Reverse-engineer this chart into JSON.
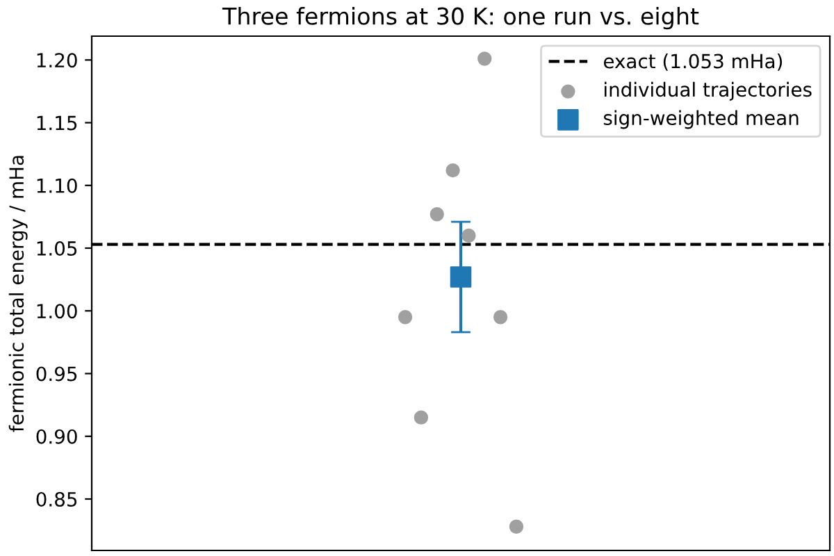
{
  "chart_data": {
    "type": "scatter",
    "title": "Three fermions at 30 K: one run vs. eight",
    "ylabel": "fermionic total energy / mHa",
    "categories": [
      null,
      null,
      null,
      null,
      null,
      null,
      null,
      null,
      null,
      null,
      null,
      null,
      null,
      null,
      null,
      null,
      null,
      null,
      null,
      null,
      null,
      null,
      null,
      null,
      null,
      null,
      null,
      null,
      null,
      null,
      null,
      null,
      null,
      null,
      null,
      null,
      null,
      null,
      null,
      null,
      null,
      null,
      null,
      null,
      null,
      null,
      null,
      null,
      null,
      null,
      null,
      null,
      null,
      null,
      null,
      null,
      null,
      null,
      null,
      null,
      null,
      null,
      null,
      null,
      null,
      null,
      null,
      null,
      null,
      null,
      null,
      null,
      null,
      null,
      null,
      null,
      null,
      null,
      null,
      null,
      null,
      null,
      null,
      null,
      null,
      null,
      null,
      null,
      null,
      null,
      null,
      null,
      null
    ],
    "series": [
      {
        "name": "individual trajectories",
        "color": "#a0a0a0",
        "marker": "circle",
        "values": [
          null,
          null,
          null,
          null,
          null,
          null,
          null,
          null,
          null,
          null,
          null,
          null,
          null,
          null,
          null,
          null,
          null,
          null,
          null,
          null,
          null,
          null,
          null,
          null,
          null,
          null,
          null,
          null,
          null,
          null,
          null,
          null,
          null,
          null,
          null,
          null,
          null,
          null,
          null,
          0.995,
          null,
          0.915,
          null,
          1.077,
          null,
          1.112,
          null,
          1.06,
          null,
          1.201,
          null,
          0.995,
          null,
          0.828,
          null,
          null,
          null,
          null,
          null,
          null,
          null,
          null,
          null,
          null,
          null,
          null,
          null,
          null,
          null,
          null,
          null,
          null,
          null,
          null,
          null,
          null,
          null,
          null,
          null,
          null,
          null,
          null,
          null,
          null,
          null,
          null,
          null,
          null,
          null,
          null,
          null,
          null,
          null
        ]
      },
      {
        "name": "sign-weighted mean",
        "color": "#1f77b4",
        "marker": "square",
        "values": [
          null,
          null,
          null,
          null,
          null,
          null,
          null,
          null,
          null,
          null,
          null,
          null,
          null,
          null,
          null,
          null,
          null,
          null,
          null,
          null,
          null,
          null,
          null,
          null,
          null,
          null,
          null,
          null,
          null,
          null,
          null,
          null,
          null,
          null,
          null,
          null,
          null,
          null,
          null,
          null,
          null,
          null,
          null,
          null,
          null,
          null,
          1.027,
          null,
          null,
          null,
          null,
          null,
          null,
          null,
          null,
          null,
          null,
          null,
          null,
          null,
          null,
          null,
          null,
          null,
          null,
          null,
          null,
          null,
          null,
          null,
          null,
          null,
          null,
          null,
          null,
          null,
          null,
          null,
          null,
          null,
          null,
          null,
          null,
          null,
          null,
          null,
          null,
          null,
          null,
          null,
          null,
          null,
          null
        ],
        "errors": [
          null,
          null,
          null,
          null,
          null,
          null,
          null,
          null,
          null,
          null,
          null,
          null,
          null,
          null,
          null,
          null,
          null,
          null,
          null,
          null,
          null,
          null,
          null,
          null,
          null,
          null,
          null,
          null,
          null,
          null,
          null,
          null,
          null,
          null,
          null,
          null,
          null,
          null,
          null,
          null,
          null,
          null,
          null,
          null,
          null,
          null,
          0.044,
          null,
          null,
          null,
          null,
          null,
          null,
          null,
          null,
          null,
          null,
          null,
          null,
          null,
          null,
          null,
          null,
          null,
          null,
          null,
          null,
          null,
          null,
          null,
          null,
          null,
          null,
          null,
          null,
          null,
          null,
          null,
          null,
          null,
          null,
          null,
          null,
          null,
          null,
          null,
          null,
          null,
          null,
          null,
          null,
          null,
          null
        ]
      }
    ],
    "ref_lines": [
      {
        "axis": "y",
        "value": 1.053,
        "label": "exact (1.053 mHa)",
        "color": "#000000",
        "line_style": "dashed"
      }
    ],
    "ylim": [
      0.809,
      1.219
    ],
    "yticks": [
      {
        "value": 0.85,
        "label": "0.85"
      },
      {
        "value": 0.9,
        "label": "0.90"
      },
      {
        "value": 0.95,
        "label": "0.95"
      },
      {
        "value": 1.0,
        "label": "1.00"
      },
      {
        "value": 1.05,
        "label": "1.05"
      },
      {
        "value": 1.1,
        "label": "1.10"
      },
      {
        "value": 1.15,
        "label": "1.15"
      },
      {
        "value": 1.2,
        "label": "1.20"
      }
    ],
    "tick_labels": "y",
    "legend": "top right"
  }
}
